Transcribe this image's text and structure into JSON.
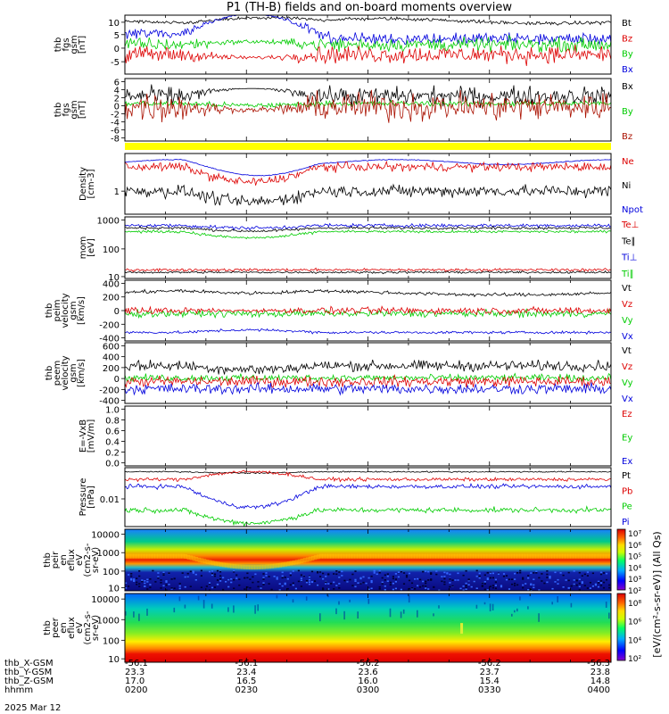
{
  "chart_data": {
    "type": "line",
    "title": "P1 (TH-B) fields and on-board moments overview",
    "date_label": "2025 Mar 12",
    "time_ticks": [
      "0200",
      "0230",
      "0300",
      "0330",
      "0400"
    ],
    "orbit_rows": [
      {
        "name": "thb_X-GSM",
        "values": [
          "-56.1",
          "-56.1",
          "-56.2",
          "-56.2",
          "-56.3"
        ]
      },
      {
        "name": "thb_Y-GSM",
        "values": [
          "23.3",
          "23.4",
          "23.6",
          "23.7",
          "23.8"
        ]
      },
      {
        "name": "thb_Z-GSM",
        "values": [
          "17.0",
          "16.5",
          "16.0",
          "15.4",
          "14.8"
        ]
      },
      {
        "name": "hhmm",
        "values": [
          "0200",
          "0230",
          "0300",
          "0330",
          "0400"
        ]
      }
    ],
    "panels": [
      {
        "id": "fgs",
        "ylabel": [
          "thb",
          "fgs",
          "gsm",
          "[nT]"
        ],
        "yticks": [
          "10",
          "5",
          "0",
          "-5"
        ],
        "ylim": [
          -10,
          11
        ],
        "legend": [
          {
            "name": "Bt",
            "color": "#000000"
          },
          {
            "name": "Bz",
            "color": "#dd0000"
          },
          {
            "name": "By",
            "color": "#00cc00"
          },
          {
            "name": "Bx",
            "color": "#0000dd"
          }
        ]
      },
      {
        "id": "fgl",
        "ylabel": [
          "thb",
          "fgs",
          "gsm",
          "[nT]"
        ],
        "yticks": [
          "6",
          "4",
          "2",
          "0",
          "-2",
          "-4",
          "-6",
          "-8"
        ],
        "ylim": [
          -9,
          7
        ],
        "legend": [
          {
            "name": "Bx",
            "color": "#000000"
          },
          {
            "name": "By",
            "color": "#00cc00"
          },
          {
            "name": "Bz",
            "color": "#aa1100"
          }
        ]
      },
      {
        "id": "density",
        "ylabel": [
          "Density",
          "[cm-3]"
        ],
        "yticks": [
          "1"
        ],
        "scale": "log",
        "legend": [
          {
            "name": "Ne",
            "color": "#dd0000"
          },
          {
            "name": "Ni",
            "color": "#000000"
          },
          {
            "name": "Npot",
            "color": "#0000dd"
          }
        ]
      },
      {
        "id": "temp",
        "ylabel": [
          "mom",
          "[eV]"
        ],
        "yticks": [
          "1000",
          "100",
          "10"
        ],
        "scale": "log",
        "legend": [
          {
            "name": "Te⊥",
            "color": "#dd0000"
          },
          {
            "name": "Te∥",
            "color": "#000000"
          },
          {
            "name": "Ti⊥",
            "color": "#0000dd"
          },
          {
            "name": "Ti∥",
            "color": "#00cc00"
          }
        ]
      },
      {
        "id": "vi",
        "ylabel": [
          "thb",
          "peim",
          "velocity",
          "gsm",
          "[km/s]"
        ],
        "yticks": [
          "400",
          "200",
          "0",
          "-200",
          "-400"
        ],
        "ylim": [
          -450,
          450
        ],
        "legend": [
          {
            "name": "Vt",
            "color": "#000000"
          },
          {
            "name": "Vz",
            "color": "#dd0000"
          },
          {
            "name": "Vy",
            "color": "#00cc00"
          },
          {
            "name": "Vx",
            "color": "#0000dd"
          }
        ]
      },
      {
        "id": "ve",
        "ylabel": [
          "thb",
          "peem",
          "velocity",
          "gsm",
          "[km/s]"
        ],
        "yticks": [
          "600",
          "400",
          "200",
          "0",
          "-200",
          "-400"
        ],
        "ylim": [
          -450,
          650
        ],
        "legend": [
          {
            "name": "Vt",
            "color": "#000000"
          },
          {
            "name": "Vz",
            "color": "#dd0000"
          },
          {
            "name": "Vy",
            "color": "#00cc00"
          },
          {
            "name": "Vx",
            "color": "#0000dd"
          }
        ]
      },
      {
        "id": "efield",
        "ylabel": [
          "E=-VxB",
          "[mV/m]"
        ],
        "yticks": [
          "1.0",
          "0.8",
          "0.6",
          "0.4",
          "0.2",
          "0.0"
        ],
        "ylim": [
          0,
          1
        ],
        "legend": [
          {
            "name": "Ez",
            "color": "#dd0000"
          },
          {
            "name": "Ey",
            "color": "#00cc00"
          },
          {
            "name": "Ex",
            "color": "#0000dd"
          }
        ]
      },
      {
        "id": "pressure",
        "ylabel": [
          "Pressure",
          "[nPa]"
        ],
        "yticks": [
          "0.01"
        ],
        "scale": "log",
        "legend": [
          {
            "name": "Pt",
            "color": "#000000"
          },
          {
            "name": "Pb",
            "color": "#dd0000"
          },
          {
            "name": "Pe",
            "color": "#00cc00"
          },
          {
            "name": "Pi",
            "color": "#0000dd"
          }
        ]
      },
      {
        "id": "ion_spec",
        "ylabel": [
          "thb",
          "peir",
          "en",
          "eflux",
          "eV",
          "(cm2-s-",
          "sr-eV)"
        ],
        "yticks": [
          "10000",
          "1000",
          "100",
          "10"
        ],
        "scale": "log"
      },
      {
        "id": "ele_spec",
        "ylabel": [
          "thb",
          "peer",
          "en",
          "eflux",
          "eV",
          "(cm2-s-",
          "sr-eV)"
        ],
        "yticks": [
          "10000",
          "1000",
          "100",
          "10"
        ],
        "scale": "log"
      }
    ],
    "colorbar": {
      "label": "[eV/(cm²-s-sr-eV)] (All Qs)",
      "ion_ticks": [
        "10⁷",
        "10⁶",
        "10⁵",
        "10⁴",
        "10³",
        "10²"
      ],
      "ele_ticks": [
        "10⁸",
        "10⁶",
        "10⁴",
        "10²"
      ]
    }
  }
}
